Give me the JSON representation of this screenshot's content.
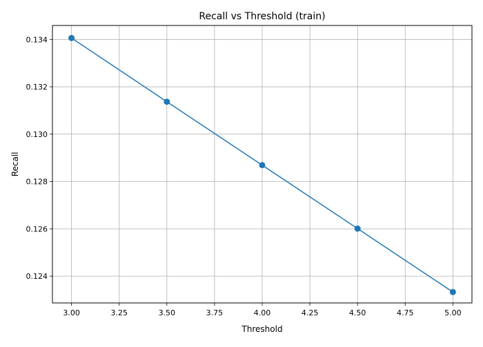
{
  "chart_data": {
    "type": "line",
    "title": "Recall vs Threshold (train)",
    "xlabel": "Threshold",
    "ylabel": "Recall",
    "x": [
      3.0,
      3.5,
      4.0,
      4.5,
      5.0
    ],
    "series": [
      {
        "values": [
          0.13406,
          0.13137,
          0.12869,
          0.12601,
          0.12333
        ],
        "color": "#1f77b4",
        "marker": "circle"
      }
    ],
    "xlim": [
      2.9,
      5.1
    ],
    "ylim": [
      0.12287,
      0.13459
    ],
    "x_ticks": [
      3.0,
      3.25,
      3.5,
      3.75,
      4.0,
      4.25,
      4.5,
      4.75,
      5.0
    ],
    "x_tick_labels": [
      "3.00",
      "3.25",
      "3.50",
      "3.75",
      "4.00",
      "4.25",
      "4.50",
      "4.75",
      "5.00"
    ],
    "y_ticks": [
      0.124,
      0.126,
      0.128,
      0.13,
      0.132,
      0.134
    ],
    "y_tick_labels": [
      "0.124",
      "0.126",
      "0.128",
      "0.130",
      "0.132",
      "0.134"
    ],
    "grid": true,
    "legend": "none"
  }
}
